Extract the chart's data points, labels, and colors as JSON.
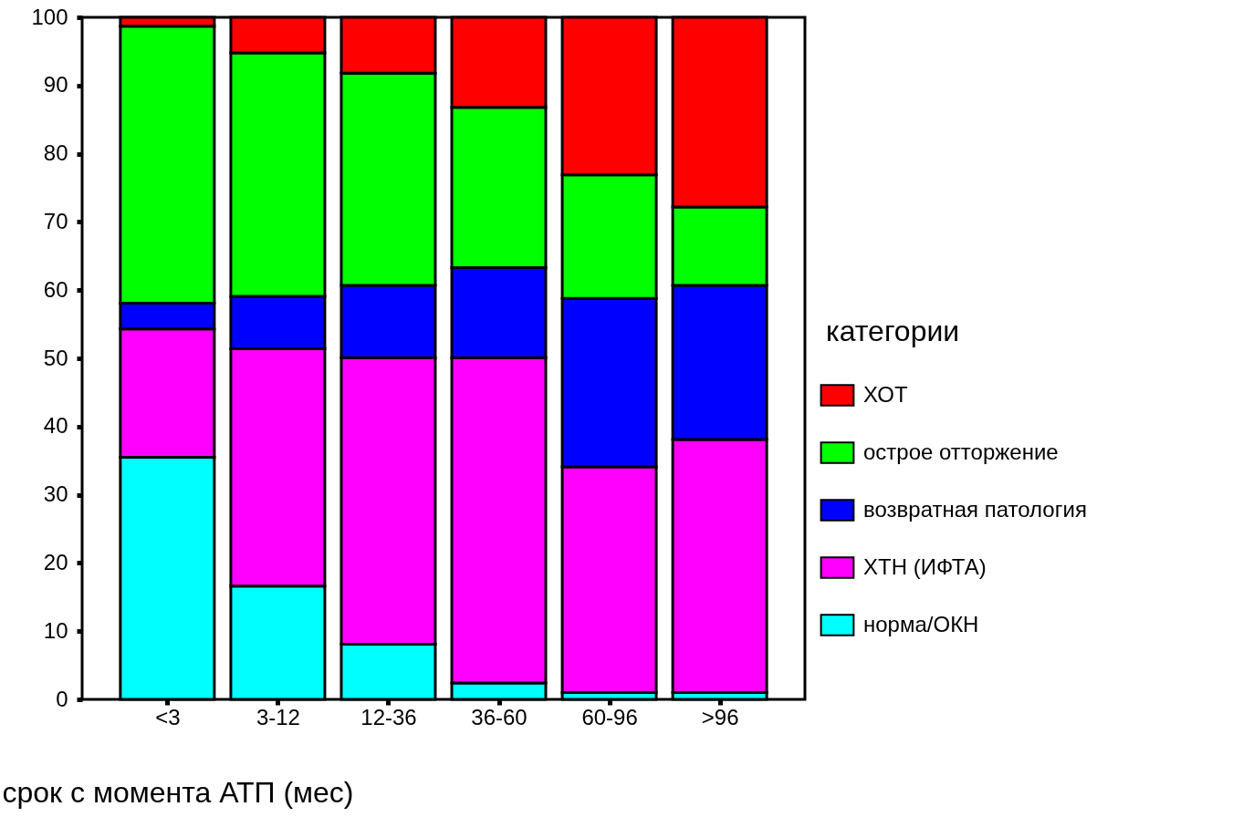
{
  "chart_data": {
    "type": "bar",
    "stacked": true,
    "xlabel": "срок с момента  АТП (мес)",
    "legend_title": "категории",
    "legend": "right",
    "categories": [
      "<3",
      "3-12",
      "12-36",
      "36-60",
      "60-96",
      ">96"
    ],
    "series": [
      {
        "name": "норма/ОКН",
        "color": "#00ffff",
        "values": [
          35.5,
          16.6,
          8.1,
          2.4,
          1.0,
          1.0
        ]
      },
      {
        "name": "ХТН (ИФТА)",
        "color": "#ff00ff",
        "values": [
          18.8,
          34.8,
          42.0,
          47.7,
          33.1,
          37.1
        ]
      },
      {
        "name": "возвратная патология",
        "color": "#0000ff",
        "values": [
          3.8,
          7.7,
          10.6,
          13.2,
          24.7,
          22.6
        ]
      },
      {
        "name": "острое отторжение",
        "color": "#00ff00",
        "values": [
          40.6,
          35.7,
          31.1,
          23.5,
          18.1,
          11.5
        ]
      },
      {
        "name": "ХОТ",
        "color": "#ff0000",
        "values": [
          1.3,
          5.2,
          8.2,
          13.2,
          23.1,
          27.8
        ]
      }
    ],
    "ylim": [
      0,
      100
    ],
    "yticks": [
      0,
      10,
      20,
      30,
      40,
      50,
      60,
      70,
      80,
      90,
      100
    ],
    "grid": false
  }
}
